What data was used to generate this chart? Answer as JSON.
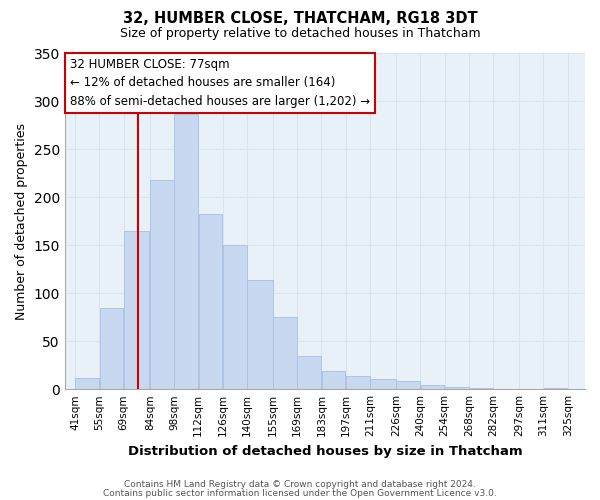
{
  "title": "32, HUMBER CLOSE, THATCHAM, RG18 3DT",
  "subtitle": "Size of property relative to detached houses in Thatcham",
  "xlabel": "Distribution of detached houses by size in Thatcham",
  "ylabel": "Number of detached properties",
  "bar_color": "#c8d8f0",
  "bar_edge_color": "#a8c0e0",
  "bar_left_edges": [
    41,
    55,
    69,
    84,
    98,
    112,
    126,
    140,
    155,
    169,
    183,
    197,
    211,
    226,
    240,
    254,
    268,
    282,
    297,
    311
  ],
  "bar_heights": [
    12,
    85,
    165,
    218,
    287,
    182,
    150,
    114,
    75,
    35,
    19,
    14,
    11,
    8,
    4,
    2,
    1,
    0,
    0,
    1
  ],
  "bar_widths": [
    14,
    14,
    15,
    14,
    14,
    14,
    14,
    15,
    14,
    14,
    14,
    14,
    15,
    14,
    14,
    14,
    14,
    15,
    14,
    14
  ],
  "tick_labels": [
    "41sqm",
    "55sqm",
    "69sqm",
    "84sqm",
    "98sqm",
    "112sqm",
    "126sqm",
    "140sqm",
    "155sqm",
    "169sqm",
    "183sqm",
    "197sqm",
    "211sqm",
    "226sqm",
    "240sqm",
    "254sqm",
    "268sqm",
    "282sqm",
    "297sqm",
    "311sqm",
    "325sqm"
  ],
  "tick_positions": [
    41,
    55,
    69,
    84,
    98,
    112,
    126,
    140,
    155,
    169,
    183,
    197,
    211,
    226,
    240,
    254,
    268,
    282,
    297,
    311,
    325
  ],
  "ylim": [
    0,
    350
  ],
  "xlim": [
    35,
    335
  ],
  "vline_x": 77,
  "vline_color": "#cc0000",
  "annotation_title": "32 HUMBER CLOSE: 77sqm",
  "annotation_line1": "← 12% of detached houses are smaller (164)",
  "annotation_line2": "88% of semi-detached houses are larger (1,202) →",
  "annotation_box_color": "#ffffff",
  "annotation_box_edge": "#cc0000",
  "footer_line1": "Contains HM Land Registry data © Crown copyright and database right 2024.",
  "footer_line2": "Contains public sector information licensed under the Open Government Licence v3.0.",
  "grid_color": "#d8e4f0",
  "yticks": [
    0,
    50,
    100,
    150,
    200,
    250,
    300,
    350
  ],
  "background_color": "#ffffff",
  "plot_bg_color": "#e8f0f8"
}
